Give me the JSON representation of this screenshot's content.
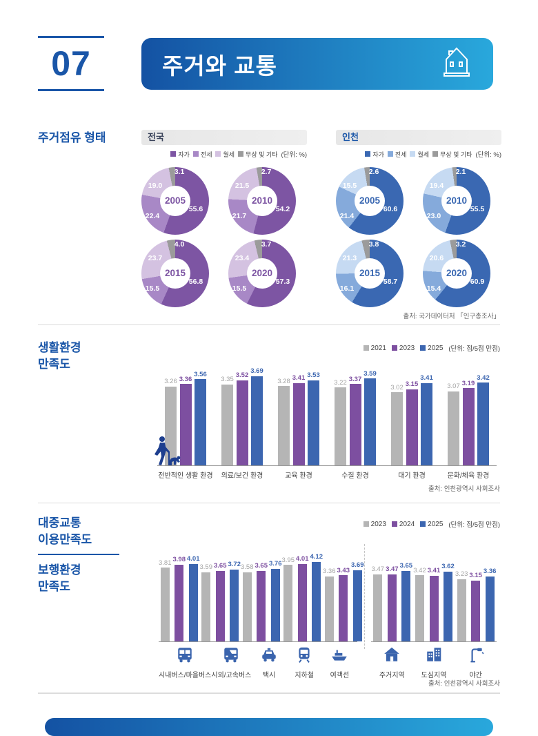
{
  "page": {
    "number": "07",
    "title": "주거와 교통"
  },
  "colors": {
    "accent_blue": "#1a56a8",
    "header_gradient": [
      "#1452a3",
      "#29a8dc"
    ],
    "national_palette": [
      "#7d55a3",
      "#a888c6",
      "#d4c2e1",
      "#9b9b9b"
    ],
    "incheon_palette": [
      "#3a68b2",
      "#85aadb",
      "#c6daf2",
      "#9b9b9b"
    ],
    "bar_series_colors": [
      "#b5b5b5",
      "#7d4fa0",
      "#3c66b0"
    ],
    "bar_label_colors": [
      "#a5a5a5",
      "#7d4fa0",
      "#3c66b0"
    ],
    "icon_blue": "#3a64ad"
  },
  "occupancy": {
    "section_title": "주거점유 형태",
    "slice_labels": [
      "자가",
      "전세",
      "월세",
      "무상 및 기타"
    ],
    "unit_label": "(단위: %)",
    "source": "출처: 국가데이터처 「인구총조사」",
    "regions": [
      {
        "name": "전국"
      },
      {
        "name": "인천"
      }
    ]
  },
  "living": {
    "title_line1": "생활환경",
    "title_line2": "만족도",
    "legend": [
      "2021",
      "2023",
      "2025"
    ],
    "unit_label": "(단위: 점/5점 만점)",
    "source": "출처: 인천광역시 사회조사"
  },
  "transport": {
    "title1_line1": "대중교통",
    "title1_line2": "이용만족도",
    "title2_line1": "보행환경",
    "title2_line2": "만족도",
    "legend": [
      "2023",
      "2024",
      "2025"
    ],
    "unit_label": "(단위: 점/5점 만점)",
    "source": "출처: 인천광역시 사회조사",
    "icons": [
      "city-bus-icon",
      "intercity-bus-icon",
      "taxi-icon",
      "subway-icon",
      "ferry-icon",
      "house-icon",
      "buildings-icon",
      "streetlamp-icon"
    ]
  },
  "chart_data": [
    {
      "type": "pie",
      "title": "주거점유 형태 — 전국",
      "unit": "%",
      "categories": [
        "자가",
        "전세",
        "월세",
        "무상 및 기타"
      ],
      "series": [
        {
          "name": "2005",
          "values": [
            55.6,
            22.4,
            19.0,
            3.1
          ]
        },
        {
          "name": "2010",
          "values": [
            54.2,
            21.7,
            21.5,
            2.7
          ]
        },
        {
          "name": "2015",
          "values": [
            56.8,
            15.5,
            23.7,
            4.0
          ]
        },
        {
          "name": "2020",
          "values": [
            57.3,
            15.5,
            23.4,
            3.7
          ]
        }
      ]
    },
    {
      "type": "pie",
      "title": "주거점유 형태 — 인천",
      "unit": "%",
      "categories": [
        "자가",
        "전세",
        "월세",
        "무상 및 기타"
      ],
      "series": [
        {
          "name": "2005",
          "values": [
            60.6,
            21.4,
            15.5,
            2.6
          ]
        },
        {
          "name": "2010",
          "values": [
            55.5,
            23.0,
            19.4,
            2.1
          ]
        },
        {
          "name": "2015",
          "values": [
            58.7,
            16.1,
            21.3,
            3.8
          ]
        },
        {
          "name": "2020",
          "values": [
            60.9,
            15.4,
            20.6,
            3.2
          ]
        }
      ]
    },
    {
      "type": "bar",
      "title": "생활환경 만족도",
      "unit": "점/5점 만점",
      "ylim": [
        0,
        5
      ],
      "legend_position": "top-right",
      "categories": [
        "전반적인 생활 환경",
        "의료/보건 환경",
        "교육 환경",
        "수질 환경",
        "대기 환경",
        "문화/체육 환경"
      ],
      "series": [
        {
          "name": "2021",
          "values": [
            3.26,
            3.35,
            3.28,
            3.22,
            3.02,
            3.07
          ]
        },
        {
          "name": "2023",
          "values": [
            3.36,
            3.52,
            3.41,
            3.37,
            3.15,
            3.19
          ]
        },
        {
          "name": "2025",
          "values": [
            3.56,
            3.69,
            3.53,
            3.59,
            3.41,
            3.42
          ]
        }
      ]
    },
    {
      "type": "bar",
      "title": "대중교통 이용만족도 / 보행환경 만족도",
      "unit": "점/5점 만점",
      "ylim": [
        0,
        5
      ],
      "legend_position": "top-right",
      "categories": [
        "시내버스/마을버스",
        "시외/고속버스",
        "택시",
        "지하철",
        "여객선",
        "주거지역",
        "도심지역",
        "야간"
      ],
      "group_split": 5,
      "series": [
        {
          "name": "2023",
          "values": [
            3.81,
            3.59,
            3.58,
            3.95,
            3.36,
            3.47,
            3.42,
            3.23
          ]
        },
        {
          "name": "2024",
          "values": [
            3.98,
            3.65,
            3.65,
            4.01,
            3.43,
            3.47,
            3.41,
            3.15
          ]
        },
        {
          "name": "2025",
          "values": [
            4.01,
            3.72,
            3.76,
            4.12,
            3.69,
            3.65,
            3.62,
            3.36
          ]
        }
      ]
    }
  ]
}
